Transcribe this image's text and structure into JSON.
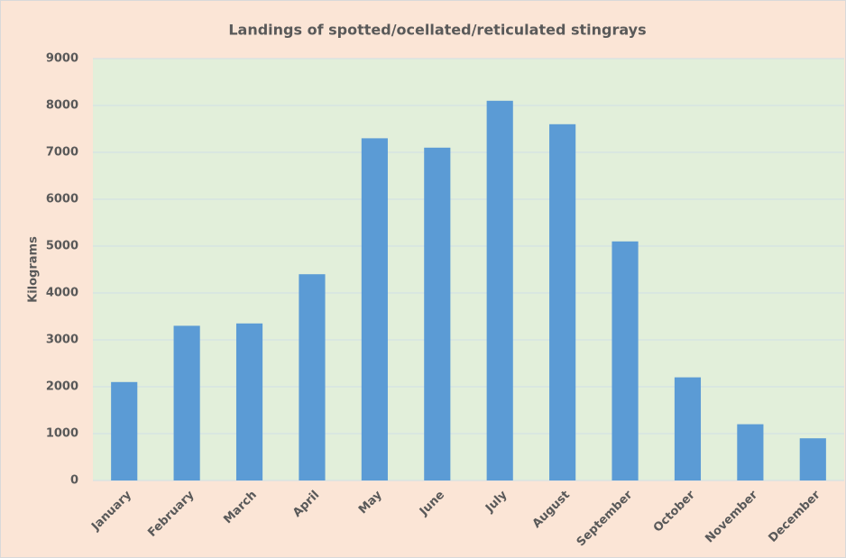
{
  "chart_data": {
    "type": "bar",
    "title": "Landings of spotted/ocellated/reticulated stingrays",
    "y_label": "Kilograms",
    "categories": [
      "January",
      "February",
      "March",
      "April",
      "May",
      "June",
      "July",
      "August",
      "September",
      "October",
      "November",
      "December"
    ],
    "values": [
      2100,
      3300,
      3350,
      4400,
      7300,
      7100,
      8100,
      7600,
      5100,
      2200,
      1200,
      900
    ],
    "color": "#5b9bd5",
    "ylim": [
      0,
      9000
    ],
    "yticks": [
      0,
      1000,
      2000,
      3000,
      4000,
      5000,
      6000,
      7000,
      8000,
      9000
    ],
    "grid": true
  }
}
